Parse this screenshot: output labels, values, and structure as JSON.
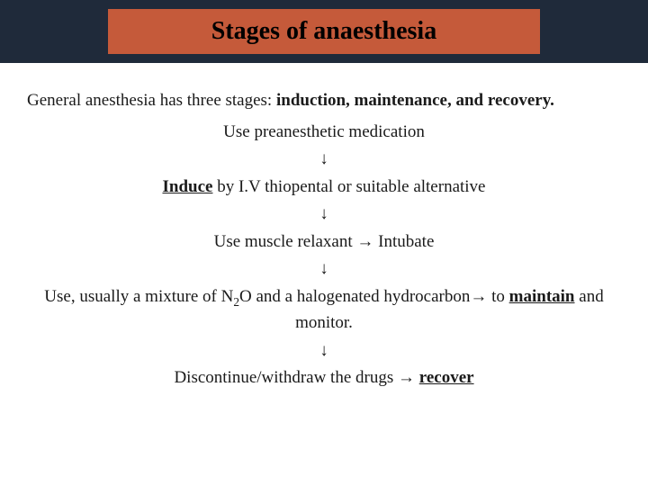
{
  "header": {
    "title": "Stages of anaesthesia",
    "band_color": "#1f2a3a",
    "title_bg": "#c55a3a",
    "title_color": "#000000",
    "title_fontsize": 28
  },
  "intro": {
    "prefix": "General anesthesia has three stages: ",
    "bold_part": "induction, maintenance, and recovery."
  },
  "flow": {
    "step1": "Use preanesthetic medication",
    "arrow": "↓",
    "step2_word": "Induce",
    "step2_rest": " by I.V thiopental or suitable alternative",
    "step3": "Use muscle relaxant → Intubate",
    "step4_pre": "Use, usually a mixture of N",
    "step4_sub": "2",
    "step4_mid": "O and a halogenated hydrocarbon→ to ",
    "step4_word": "maintain",
    "step4_post": " and monitor.",
    "step5_pre": "Discontinue/withdraw the drugs → ",
    "step5_word": "recover"
  },
  "colors": {
    "text": "#1a1a1a",
    "background": "#ffffff"
  }
}
